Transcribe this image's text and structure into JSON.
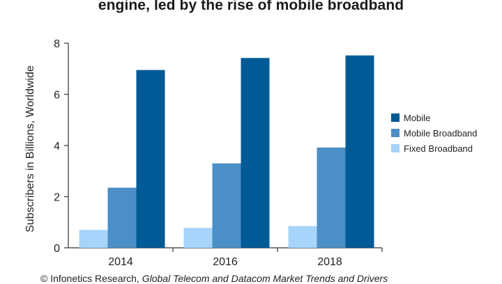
{
  "title": "engine, led by the rise of mobile broadband",
  "footer": {
    "prefix": "© Infonetics Research,",
    "italic": "Global Telecom and Datacom Market Trends and Drivers"
  },
  "colors": {
    "mobile": "#005a96",
    "mobile_broadband": "#4b8fc6",
    "fixed_broadband": "#a6d4fa",
    "axis": "#333333"
  },
  "chart_data": {
    "type": "bar",
    "title": "engine, led by the rise of mobile broadband",
    "xlabel": "",
    "ylabel": "Subscribers in Billions, Worldwide",
    "categories": [
      "2014",
      "2016",
      "2018"
    ],
    "ylim": [
      0,
      8
    ],
    "yticks": [
      0,
      2,
      4,
      6,
      8
    ],
    "grid": false,
    "legend_position": "right",
    "series": [
      {
        "name": "Fixed Broadband",
        "color_key": "fixed_broadband",
        "values": [
          0.7,
          0.78,
          0.85
        ]
      },
      {
        "name": "Mobile Broadband",
        "color_key": "mobile_broadband",
        "values": [
          2.35,
          3.3,
          3.92
        ]
      },
      {
        "name": "Mobile",
        "color_key": "mobile",
        "values": [
          6.95,
          7.42,
          7.52
        ]
      }
    ],
    "legend_order": [
      "Mobile",
      "Mobile Broadband",
      "Fixed Broadband"
    ]
  }
}
